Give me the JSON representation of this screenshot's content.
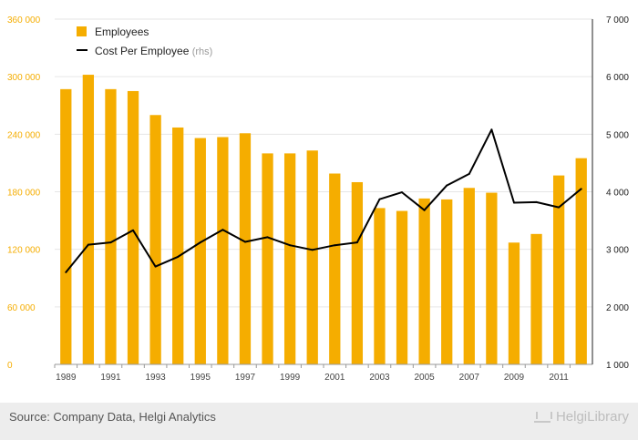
{
  "chart_data": {
    "type": "bar+line",
    "categories": [
      "1989",
      "1990",
      "1991",
      "1992",
      "1993",
      "1994",
      "1995",
      "1996",
      "1997",
      "1998",
      "1999",
      "2000",
      "2001",
      "2002",
      "2003",
      "2004",
      "2005",
      "2006",
      "2007",
      "2008",
      "2009",
      "2010",
      "2011",
      "2012"
    ],
    "x_tick_labels": [
      "1989",
      "1991",
      "1993",
      "1995",
      "1997",
      "1999",
      "2001",
      "2003",
      "2005",
      "2007",
      "2009",
      "2011"
    ],
    "series": [
      {
        "name": "Employees",
        "type": "bar",
        "axis": "left",
        "color": "#f5ad00",
        "values": [
          287000,
          302000,
          287000,
          285000,
          260000,
          247000,
          236000,
          237000,
          241000,
          220000,
          220000,
          223000,
          199000,
          190000,
          163000,
          160000,
          173000,
          172000,
          184000,
          179000,
          127000,
          136000,
          197000,
          215000
        ]
      },
      {
        "name": "Cost Per Employee",
        "suffix": "(rhs)",
        "type": "line",
        "axis": "right",
        "color": "#000000",
        "values": [
          2600,
          3080,
          3120,
          3330,
          2700,
          2870,
          3120,
          3340,
          3130,
          3210,
          3070,
          2990,
          3070,
          3120,
          3870,
          3990,
          3680,
          4110,
          4310,
          5080,
          3810,
          3820,
          3730,
          4050
        ]
      }
    ],
    "y_left": {
      "min": 0,
      "max": 360000,
      "ticks": [
        0,
        60000,
        120000,
        180000,
        240000,
        300000,
        360000
      ],
      "tick_labels": [
        "0",
        "60 000",
        "120 000",
        "180 000",
        "240 000",
        "300 000",
        "360 000"
      ]
    },
    "y_right": {
      "min": 1000,
      "max": 7000,
      "ticks": [
        1000,
        2000,
        3000,
        4000,
        5000,
        6000,
        7000
      ],
      "tick_labels": [
        "1 000",
        "2 000",
        "3 000",
        "4 000",
        "5 000",
        "6 000",
        "7 000"
      ]
    },
    "legend_position": "top-left",
    "grid": true,
    "title": "",
    "xlabel": "",
    "ylabel": ""
  },
  "footer": {
    "source": "Source: Company Data, Helgi Analytics",
    "logo_text": "HelgiLibrary"
  },
  "colors": {
    "bar": "#f5ad00",
    "line": "#000000",
    "left_axis_text": "#f5ad00",
    "grid": "#e6e6e6"
  }
}
